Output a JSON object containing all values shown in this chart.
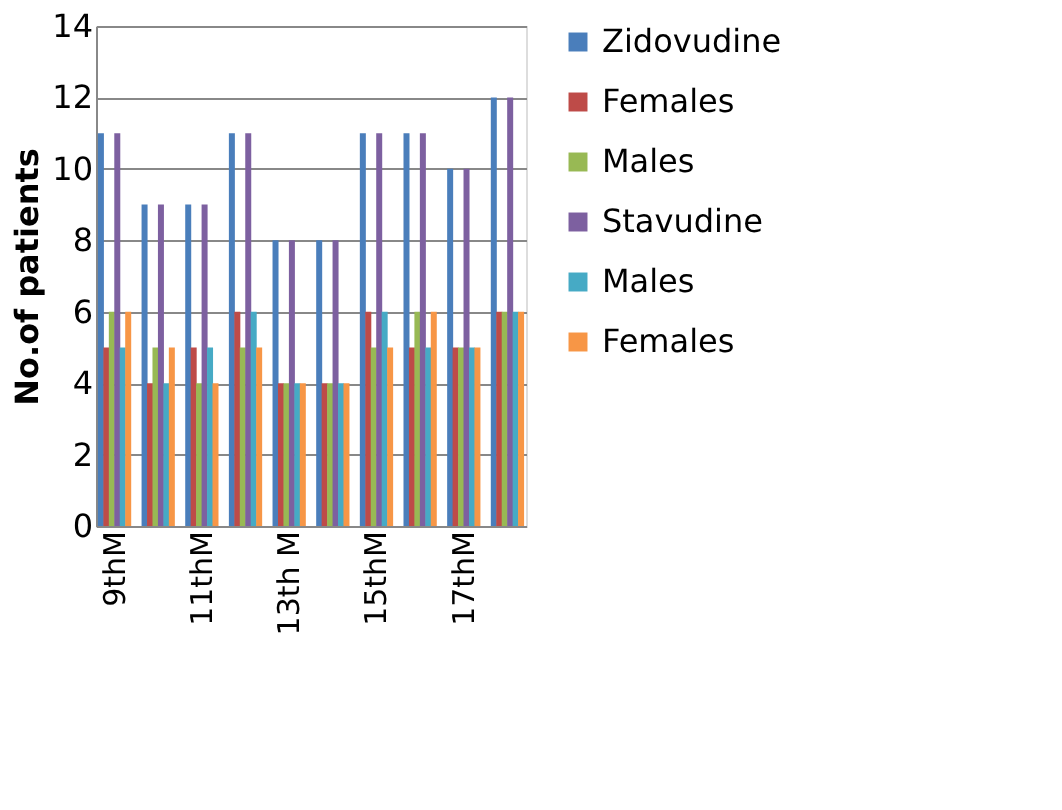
{
  "chart_data": {
    "type": "bar",
    "ylabel": "No.of patients",
    "categories": [
      "9thM",
      null,
      "11thM",
      null,
      "13th M",
      null,
      "15thM",
      null,
      "17thM",
      null
    ],
    "series": [
      {
        "name": "Zidovudine",
        "color": "#4a7ebb",
        "values": [
          11,
          9,
          9,
          11,
          8,
          8,
          11,
          11,
          10,
          12
        ]
      },
      {
        "name": "Females",
        "color": "#be4b48",
        "values": [
          5,
          4,
          5,
          6,
          4,
          4,
          6,
          5,
          5,
          6
        ]
      },
      {
        "name": "Males",
        "color": "#98b954",
        "values": [
          6,
          5,
          4,
          5,
          4,
          4,
          5,
          6,
          5,
          6
        ]
      },
      {
        "name": "Stavudine",
        "color": "#7d60a0",
        "values": [
          11,
          9,
          9,
          11,
          8,
          8,
          11,
          11,
          10,
          12
        ]
      },
      {
        "name": "Males",
        "color": "#46aac5",
        "values": [
          5,
          4,
          5,
          6,
          4,
          4,
          6,
          5,
          5,
          6
        ]
      },
      {
        "name": "Females",
        "color": "#f79646",
        "values": [
          6,
          5,
          4,
          5,
          4,
          4,
          5,
          6,
          5,
          6
        ]
      }
    ],
    "ylim": [
      0,
      14
    ],
    "yticks": [
      0,
      2,
      4,
      6,
      8,
      10,
      12,
      14
    ],
    "grid": "y",
    "legend": "right"
  }
}
